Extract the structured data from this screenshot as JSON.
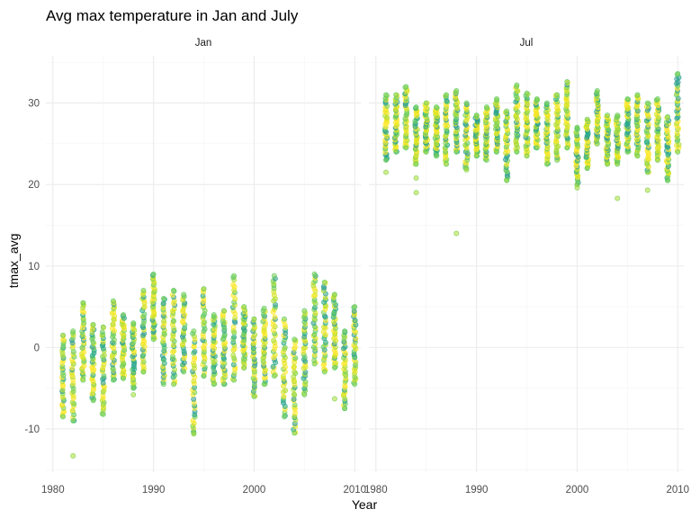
{
  "chart_data": {
    "type": "scatter",
    "title": "Avg max temperature in Jan and July",
    "xlabel": "Year",
    "ylabel": "tmax_avg",
    "xlim": [
      1979.3,
      2010.6
    ],
    "ylim": [
      -15.3,
      35.8
    ],
    "x_ticks": [
      1980,
      1990,
      2000,
      2010
    ],
    "y_ticks": [
      -10,
      0,
      10,
      20,
      30
    ],
    "grid": true,
    "legend": "none",
    "facets": [
      {
        "label": "Jan",
        "ranges": [
          {
            "year": 1981,
            "min": -8.5,
            "max": 1.5
          },
          {
            "year": 1982,
            "min": -9.0,
            "max": 2.0
          },
          {
            "year": 1983,
            "min": -4.0,
            "max": 5.5
          },
          {
            "year": 1984,
            "min": -6.5,
            "max": 2.8
          },
          {
            "year": 1985,
            "min": -8.2,
            "max": 2.5
          },
          {
            "year": 1986,
            "min": -4.0,
            "max": 5.7
          },
          {
            "year": 1987,
            "min": -3.8,
            "max": 4.0
          },
          {
            "year": 1988,
            "min": -5.0,
            "max": 3.0
          },
          {
            "year": 1989,
            "min": -3.0,
            "max": 7.0
          },
          {
            "year": 1990,
            "min": 1.0,
            "max": 9.0
          },
          {
            "year": 1991,
            "min": -4.5,
            "max": 6.0
          },
          {
            "year": 1992,
            "min": -4.5,
            "max": 7.0
          },
          {
            "year": 1993,
            "min": -3.0,
            "max": 6.5
          },
          {
            "year": 1994,
            "min": -10.5,
            "max": 2.0
          },
          {
            "year": 1995,
            "min": -3.5,
            "max": 7.2
          },
          {
            "year": 1996,
            "min": -4.5,
            "max": 4.0
          },
          {
            "year": 1997,
            "min": -4.5,
            "max": 4.5
          },
          {
            "year": 1998,
            "min": -4.0,
            "max": 8.8
          },
          {
            "year": 1999,
            "min": -2.5,
            "max": 5.0
          },
          {
            "year": 2000,
            "min": -6.0,
            "max": 3.5
          },
          {
            "year": 2001,
            "min": -4.5,
            "max": 4.8
          },
          {
            "year": 2002,
            "min": -3.5,
            "max": 8.8
          },
          {
            "year": 2003,
            "min": -8.5,
            "max": 3.5
          },
          {
            "year": 2004,
            "min": -10.5,
            "max": 1.0
          },
          {
            "year": 2005,
            "min": -5.8,
            "max": 4.5
          },
          {
            "year": 2006,
            "min": -2.0,
            "max": 9.0
          },
          {
            "year": 2007,
            "min": -3.0,
            "max": 8.0
          },
          {
            "year": 2008,
            "min": -2.5,
            "max": 6.5
          },
          {
            "year": 2009,
            "min": -7.5,
            "max": 2.0
          },
          {
            "year": 2010,
            "min": -4.5,
            "max": 5.0
          }
        ],
        "outliers": [
          {
            "x": 1982,
            "y": -13.3
          },
          {
            "x": 1985,
            "y": -7.0
          },
          {
            "x": 1988,
            "y": -5.8
          },
          {
            "x": 2008,
            "y": -6.3
          },
          {
            "x": 1994,
            "y": -10.6
          }
        ]
      },
      {
        "label": "Jul",
        "ranges": [
          {
            "year": 1981,
            "min": 23.0,
            "max": 31.0
          },
          {
            "year": 1982,
            "min": 24.0,
            "max": 31.0
          },
          {
            "year": 1983,
            "min": 24.5,
            "max": 32.0
          },
          {
            "year": 1984,
            "min": 22.5,
            "max": 29.5
          },
          {
            "year": 1985,
            "min": 24.0,
            "max": 30.0
          },
          {
            "year": 1986,
            "min": 23.5,
            "max": 29.5
          },
          {
            "year": 1987,
            "min": 22.5,
            "max": 31.0
          },
          {
            "year": 1988,
            "min": 24.0,
            "max": 31.5
          },
          {
            "year": 1989,
            "min": 22.0,
            "max": 30.0
          },
          {
            "year": 1990,
            "min": 23.5,
            "max": 28.5
          },
          {
            "year": 1991,
            "min": 23.0,
            "max": 29.5
          },
          {
            "year": 1992,
            "min": 24.0,
            "max": 30.5
          },
          {
            "year": 1993,
            "min": 20.5,
            "max": 29.0
          },
          {
            "year": 1994,
            "min": 24.0,
            "max": 32.2
          },
          {
            "year": 1995,
            "min": 23.5,
            "max": 31.2
          },
          {
            "year": 1996,
            "min": 24.5,
            "max": 30.5
          },
          {
            "year": 1997,
            "min": 22.5,
            "max": 30.0
          },
          {
            "year": 1998,
            "min": 23.0,
            "max": 31.0
          },
          {
            "year": 1999,
            "min": 24.5,
            "max": 32.6
          },
          {
            "year": 2000,
            "min": 20.0,
            "max": 27.0
          },
          {
            "year": 2001,
            "min": 22.0,
            "max": 28.0
          },
          {
            "year": 2002,
            "min": 25.0,
            "max": 31.5
          },
          {
            "year": 2003,
            "min": 22.5,
            "max": 28.5
          },
          {
            "year": 2004,
            "min": 22.5,
            "max": 28.5
          },
          {
            "year": 2005,
            "min": 24.0,
            "max": 30.5
          },
          {
            "year": 2006,
            "min": 23.5,
            "max": 31.0
          },
          {
            "year": 2007,
            "min": 21.5,
            "max": 30.0
          },
          {
            "year": 2008,
            "min": 23.0,
            "max": 30.5
          },
          {
            "year": 2009,
            "min": 20.5,
            "max": 28.3
          },
          {
            "year": 2010,
            "min": 24.0,
            "max": 33.6
          }
        ],
        "outliers": [
          {
            "x": 1981,
            "y": 21.5
          },
          {
            "x": 1984,
            "y": 19.0
          },
          {
            "x": 1984,
            "y": 20.8
          },
          {
            "x": 1988,
            "y": 14.0
          },
          {
            "x": 1989,
            "y": 21.8
          },
          {
            "x": 2000,
            "y": 19.6
          },
          {
            "x": 2004,
            "y": 18.3
          },
          {
            "x": 2007,
            "y": 19.3
          }
        ]
      }
    ],
    "colors": {
      "palette": [
        "#22a884",
        "#2a9d8f",
        "#5ec962",
        "#7ad151",
        "#addc30",
        "#d2e21b",
        "#fde725",
        "#fde725",
        "#e5e419"
      ],
      "grid": "#ebebeb"
    }
  }
}
